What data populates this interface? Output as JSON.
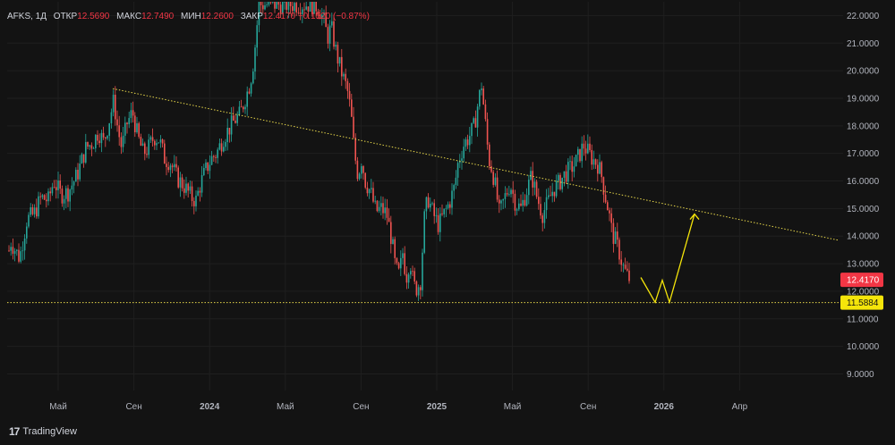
{
  "header": {
    "symbol": "AFKS, 1Д",
    "open_label": "ОТКР",
    "open": "12.5690",
    "high_label": "МАКС",
    "high": "12.7490",
    "low_label": "МИН",
    "low": "12.2600",
    "close_label": "ЗАКР",
    "close": "12.4170",
    "change": "−0.1520 (−0.87%)"
  },
  "brand": {
    "logo": "17",
    "name": "TradingView"
  },
  "chart_data": {
    "type": "candlestick",
    "y_range": [
      8.4,
      22.5
    ],
    "y_ticks": [
      "22.0000",
      "21.0000",
      "20.0000",
      "19.0000",
      "18.0000",
      "17.0000",
      "16.0000",
      "15.0000",
      "14.0000",
      "13.0000",
      "12.0000",
      "11.0000",
      "10.0000",
      "9.0000"
    ],
    "x_ticks": [
      "Май",
      "Сен",
      "2024",
      "Май",
      "Сен",
      "2025",
      "Май",
      "Сен",
      "2026",
      "Апр"
    ],
    "x_ticks_bold": [
      "2024",
      "2025",
      "2026"
    ],
    "price_labels": [
      {
        "value": "12.4170",
        "color": "#f23645"
      },
      {
        "value": "11.5884",
        "color": "#f5e50a"
      }
    ],
    "close_path": [
      [
        0,
        13.6
      ],
      [
        4,
        12.5
      ],
      [
        12,
        13.8
      ],
      [
        22,
        13.2
      ],
      [
        30,
        14.6
      ],
      [
        38,
        14.8
      ],
      [
        46,
        15.4
      ],
      [
        54,
        15.3
      ],
      [
        60,
        16.0
      ],
      [
        68,
        15.5
      ],
      [
        76,
        15.6
      ],
      [
        86,
        16.2
      ],
      [
        96,
        17.2
      ],
      [
        104,
        17.4
      ],
      [
        110,
        17.8
      ],
      [
        116,
        17.4
      ],
      [
        122,
        18.2
      ],
      [
        127,
        18.9
      ],
      [
        132,
        17.8
      ],
      [
        136,
        17.2
      ],
      [
        142,
        18.1
      ],
      [
        148,
        18.5
      ],
      [
        154,
        17.6
      ],
      [
        160,
        17.0
      ],
      [
        166,
        17.2
      ],
      [
        172,
        17.6
      ],
      [
        178,
        17.5
      ],
      [
        184,
        16.8
      ],
      [
        190,
        16.7
      ],
      [
        198,
        16.1
      ],
      [
        206,
        15.8
      ],
      [
        214,
        15.4
      ],
      [
        219,
        15.3
      ],
      [
        224,
        15.9
      ],
      [
        230,
        16.4
      ],
      [
        236,
        16.8
      ],
      [
        242,
        17.0
      ],
      [
        250,
        17.6
      ],
      [
        256,
        17.9
      ],
      [
        262,
        18.2
      ],
      [
        268,
        18.4
      ],
      [
        274,
        19.0
      ],
      [
        278,
        19.4
      ],
      [
        282,
        20.0
      ],
      [
        286,
        21.2
      ],
      [
        289,
        22.4
      ],
      [
        350,
        22.4
      ],
      [
        356,
        22.3
      ],
      [
        362,
        21.8
      ],
      [
        366,
        21.2
      ],
      [
        370,
        21.6
      ],
      [
        376,
        20.6
      ],
      [
        382,
        19.9
      ],
      [
        388,
        19.3
      ],
      [
        392,
        18.5
      ],
      [
        396,
        17.0
      ],
      [
        400,
        16.2
      ],
      [
        404,
        16.8
      ],
      [
        408,
        16.0
      ],
      [
        414,
        15.6
      ],
      [
        420,
        14.9
      ],
      [
        426,
        15.0
      ],
      [
        432,
        14.8
      ],
      [
        438,
        13.8
      ],
      [
        442,
        12.8
      ],
      [
        446,
        12.6
      ],
      [
        450,
        13.4
      ],
      [
        454,
        12.5
      ],
      [
        458,
        13.2
      ],
      [
        462,
        12.2
      ],
      [
        466,
        12.1
      ],
      [
        470,
        12.4
      ],
      [
        474,
        14.6
      ],
      [
        478,
        15.4
      ],
      [
        484,
        14.8
      ],
      [
        490,
        14.4
      ],
      [
        496,
        14.8
      ],
      [
        502,
        15.2
      ],
      [
        508,
        15.8
      ],
      [
        512,
        16.7
      ],
      [
        518,
        17.3
      ],
      [
        524,
        17.6
      ],
      [
        530,
        18.0
      ],
      [
        534,
        18.8
      ],
      [
        538,
        19.5
      ],
      [
        542,
        18.2
      ],
      [
        546,
        16.8
      ],
      [
        550,
        16.4
      ],
      [
        554,
        15.7
      ],
      [
        558,
        14.8
      ],
      [
        564,
        15.4
      ],
      [
        570,
        15.9
      ],
      [
        576,
        15.2
      ],
      [
        582,
        15.0
      ],
      [
        588,
        15.6
      ],
      [
        594,
        16.2
      ],
      [
        600,
        15.4
      ],
      [
        606,
        14.8
      ],
      [
        612,
        15.2
      ],
      [
        618,
        15.7
      ],
      [
        624,
        15.9
      ],
      [
        630,
        16.2
      ],
      [
        636,
        16.4
      ],
      [
        642,
        16.6
      ],
      [
        648,
        17.0
      ],
      [
        652,
        17.3
      ],
      [
        656,
        17.1
      ],
      [
        662,
        16.8
      ],
      [
        668,
        16.6
      ],
      [
        672,
        16.2
      ],
      [
        676,
        15.5
      ],
      [
        680,
        14.9
      ],
      [
        684,
        14.1
      ],
      [
        688,
        13.8
      ],
      [
        692,
        13.4
      ],
      [
        696,
        12.9
      ],
      [
        700,
        12.6
      ],
      [
        704,
        12.4
      ]
    ],
    "trendline": {
      "x": [
        126,
        937
      ],
      "y": [
        19.35,
        13.85
      ],
      "style": "dotted",
      "color": "#e6d64a"
    },
    "support_line": {
      "y": 11.5884,
      "style": "dotted",
      "color": "#e6d64a"
    },
    "projection": {
      "points": [
        [
          716,
          12.5
        ],
        [
          732,
          11.6
        ],
        [
          740,
          12.4
        ],
        [
          748,
          11.6
        ],
        [
          776,
          14.8
        ]
      ],
      "color": "#f5e50a"
    }
  }
}
